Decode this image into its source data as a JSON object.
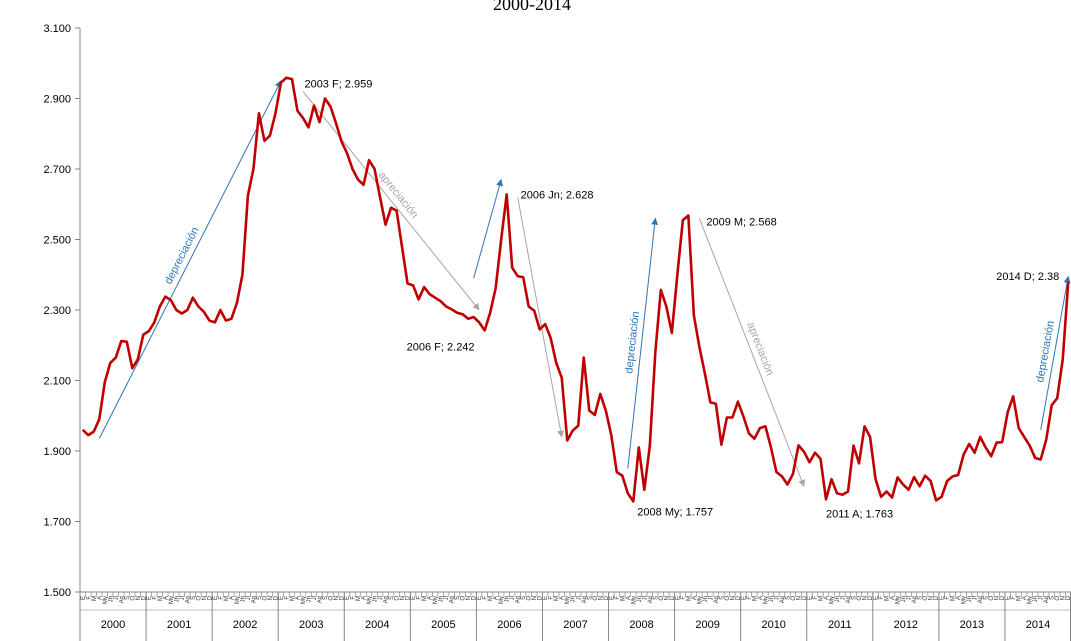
{
  "chart_data": {
    "type": "line",
    "title": "2000-2014",
    "ylim": [
      1500,
      3100
    ],
    "y_ticks": [
      "1.500",
      "1.700",
      "1.900",
      "2.100",
      "2.300",
      "2.500",
      "2.700",
      "2.900",
      "3.100"
    ],
    "years": [
      "2000",
      "2001",
      "2002",
      "2003",
      "2004",
      "2005",
      "2006",
      "2007",
      "2008",
      "2009",
      "2010",
      "2011",
      "2012",
      "2013",
      "2014"
    ],
    "month_labels": [
      "E",
      "F",
      "M",
      "A",
      "My",
      "Jn",
      "Jl",
      "Ag",
      "S",
      "O",
      "N",
      "D"
    ],
    "grid": false,
    "series": [
      {
        "color": "#C00000",
        "values": [
          1960,
          1945,
          1955,
          1990,
          2095,
          2150,
          2165,
          2212,
          2210,
          2135,
          2160,
          2230,
          2240,
          2265,
          2310,
          2338,
          2328,
          2300,
          2290,
          2300,
          2335,
          2310,
          2295,
          2270,
          2265,
          2300,
          2270,
          2275,
          2320,
          2400,
          2625,
          2700,
          2858,
          2780,
          2795,
          2858,
          2945,
          2959,
          2955,
          2865,
          2845,
          2818,
          2880,
          2833,
          2900,
          2877,
          2830,
          2778,
          2745,
          2700,
          2670,
          2655,
          2725,
          2700,
          2620,
          2542,
          2590,
          2582,
          2478,
          2375,
          2370,
          2330,
          2365,
          2345,
          2335,
          2325,
          2310,
          2302,
          2292,
          2288,
          2275,
          2280,
          2265,
          2242,
          2292,
          2362,
          2500,
          2628,
          2420,
          2396,
          2393,
          2310,
          2298,
          2245,
          2260,
          2220,
          2150,
          2108,
          1930,
          1958,
          1972,
          2165,
          2015,
          2002,
          2062,
          2015,
          1945,
          1840,
          1830,
          1780,
          1757,
          1910,
          1790,
          1915,
          2180,
          2357,
          2310,
          2235,
          2400,
          2555,
          2568,
          2285,
          2195,
          2120,
          2038,
          2034,
          1918,
          1995,
          1995,
          2040,
          1998,
          1950,
          1935,
          1965,
          1970,
          1910,
          1840,
          1828,
          1805,
          1835,
          1916,
          1898,
          1868,
          1895,
          1878,
          1763,
          1820,
          1780,
          1776,
          1785,
          1915,
          1865,
          1970,
          1940,
          1820,
          1770,
          1785,
          1768,
          1825,
          1805,
          1790,
          1826,
          1800,
          1830,
          1815,
          1760,
          1770,
          1815,
          1828,
          1832,
          1890,
          1920,
          1895,
          1940,
          1910,
          1885,
          1924,
          1925,
          2010,
          2055,
          1965,
          1940,
          1915,
          1880,
          1876,
          1932,
          2030,
          2050,
          2160,
          2380
        ]
      }
    ],
    "annotations": [
      {
        "text": "2003 F;  2.959",
        "x": 37,
        "y": 2959
      },
      {
        "text": "2006 F;  2.242",
        "x": 73,
        "y": 2242
      },
      {
        "text": "2006 Jn;  2.628",
        "x": 77,
        "y": 2628
      },
      {
        "text": "2008 My;  1.757",
        "x": 100,
        "y": 1757
      },
      {
        "text": "2009 M;  2.568",
        "x": 110,
        "y": 2568
      },
      {
        "text": "2011 A;  1.763",
        "x": 135,
        "y": 1763
      },
      {
        "text": "2014 D;  2.38",
        "x": 179,
        "y": 2380
      }
    ],
    "trend_arrows": [
      {
        "label": "depreciación",
        "color": "#2E75B6",
        "x1": 3,
        "y1": 1935,
        "x2": 36,
        "y2": 2950
      },
      {
        "label": "apreciación",
        "color": "#A6A6A6",
        "x1": 40,
        "y1": 2920,
        "x2": 72,
        "y2": 2300
      },
      {
        "label": "",
        "color": "#2E75B6",
        "x1": 71,
        "y1": 2390,
        "x2": 76,
        "y2": 2670
      },
      {
        "label": "",
        "color": "#A6A6A6",
        "x1": 79,
        "y1": 2620,
        "x2": 87,
        "y2": 1940
      },
      {
        "label": "depreciación",
        "color": "#2E75B6",
        "x1": 99,
        "y1": 1850,
        "x2": 104,
        "y2": 2560
      },
      {
        "label": "apreciación",
        "color": "#A6A6A6",
        "x1": 112,
        "y1": 2560,
        "x2": 131,
        "y2": 1800
      },
      {
        "label": "depreciación",
        "color": "#2E75B6",
        "x1": 174,
        "y1": 1960,
        "x2": 179,
        "y2": 2395
      }
    ]
  }
}
